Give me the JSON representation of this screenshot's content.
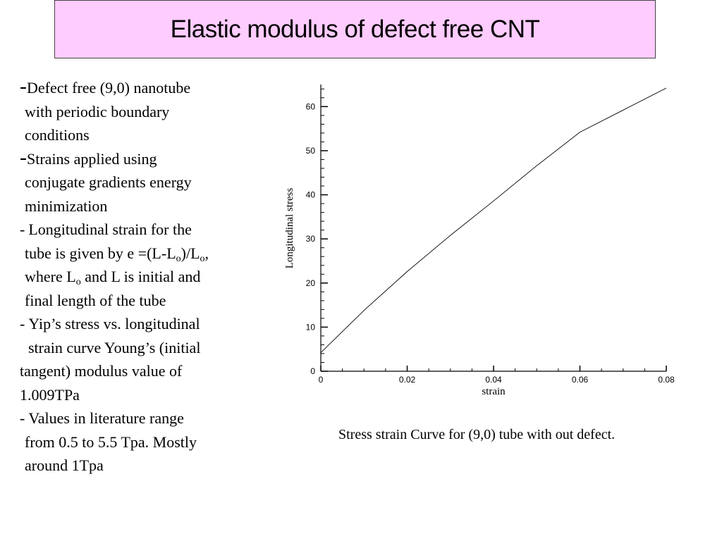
{
  "slide": {
    "title": "Elastic modulus of defect free CNT",
    "caption": "Stress strain Curve for (9,0) tube with out defect."
  },
  "bullets": {
    "b1": {
      "dash": "-",
      "lines": [
        "Defect free (9,0) nanotube",
        "with periodic boundary",
        "conditions"
      ]
    },
    "b2": {
      "dash": "-",
      "lines": [
        "Strains applied using",
        "conjugate gradients energy",
        "minimization"
      ]
    },
    "b3": {
      "dash": "-",
      "line1": "Longitudinal strain for the",
      "line2_a": "tube is given by e =(L-L",
      "line2_sub1": "o",
      "line2_b": ")/L",
      "line2_sub2": "o",
      "line2_c": ",",
      "line3_a": "where L",
      "line3_sub": "o",
      "line3_b": " and L is initial and",
      "line4": "final length of the tube"
    },
    "b4": {
      "dash": "-",
      "lines": [
        "Yip’s stress vs. longitudinal",
        "strain curve Young’s (initial",
        "tangent) modulus value of",
        "1.009TPa"
      ]
    },
    "b5": {
      "dash": "-",
      "lines": [
        "Values in literature range",
        "from 0.5 to 5.5 Tpa. Mostly",
        "around 1Tpa"
      ]
    }
  },
  "chart_data": {
    "type": "line",
    "xlabel": "strain",
    "ylabel": "Longitudinal stress",
    "xlim": [
      0,
      0.08
    ],
    "ylim": [
      0,
      65
    ],
    "xticks": [
      0,
      0.02,
      0.04,
      0.06,
      0.08
    ],
    "xtick_labels": [
      "0",
      "0.02",
      "0.04",
      "0.06",
      "0.08"
    ],
    "yticks": [
      0,
      10,
      20,
      30,
      40,
      50,
      60
    ],
    "ytick_labels": [
      "0",
      "10",
      "20",
      "30",
      "40",
      "50",
      "60"
    ],
    "grid": false,
    "series": [
      {
        "color": "#000000",
        "x": [
          0,
          0.01,
          0.02,
          0.03,
          0.04,
          0.05,
          0.06,
          0.07,
          0.08
        ],
        "y": [
          4.2,
          13.8,
          22.6,
          30.8,
          38.6,
          46.6,
          54.2,
          59.2,
          64.2
        ]
      }
    ]
  }
}
